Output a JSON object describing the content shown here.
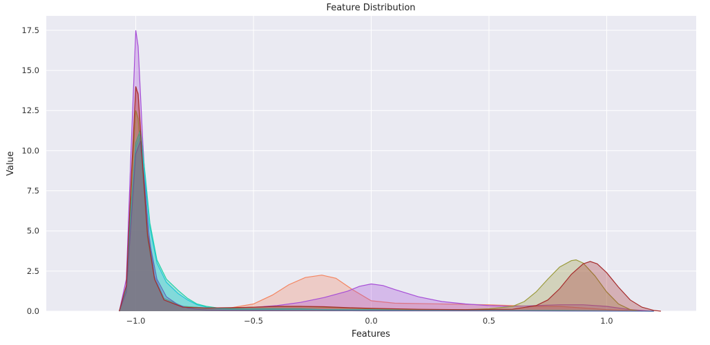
{
  "chart_data": {
    "type": "area",
    "title": "Feature Distribution",
    "xlabel": "Features",
    "ylabel": "Value",
    "xlim": [
      -1.38,
      1.38
    ],
    "ylim": [
      0,
      18.4
    ],
    "x_ticks": [
      -1.0,
      -0.5,
      0.0,
      0.5,
      1.0
    ],
    "x_tick_labels": [
      "−1.0",
      "−0.5",
      "0.0",
      "0.5",
      "1.0"
    ],
    "y_ticks": [
      0.0,
      2.5,
      5.0,
      7.5,
      10.0,
      12.5,
      15.0,
      17.5
    ],
    "y_tick_labels": [
      "0.0",
      "2.5",
      "5.0",
      "7.5",
      "10.0",
      "12.5",
      "15.0",
      "17.5"
    ],
    "grid": true,
    "background": "#eaeaf2",
    "series": [
      {
        "color": "#f4845f",
        "x": [
          -1.07,
          -1.04,
          -1.02,
          -1.0,
          -0.99,
          -0.97,
          -0.95,
          -0.92,
          -0.88,
          -0.8,
          -0.7,
          -0.6,
          -0.5,
          -0.42,
          -0.35,
          -0.28,
          -0.21,
          -0.15,
          -0.08,
          0.0,
          0.1,
          0.3,
          0.5,
          0.6,
          0.7,
          0.8,
          0.9,
          1.0,
          1.1,
          1.2
        ],
        "values": [
          0,
          1.5,
          7.5,
          13.8,
          13.6,
          9.5,
          5.0,
          2.0,
          0.8,
          0.3,
          0.15,
          0.2,
          0.45,
          1.0,
          1.65,
          2.1,
          2.25,
          2.05,
          1.35,
          0.65,
          0.5,
          0.45,
          0.4,
          0.35,
          0.3,
          0.3,
          0.2,
          0.1,
          0.05,
          0
        ]
      },
      {
        "color": "#a64dd6",
        "x": [
          -1.07,
          -1.04,
          -1.02,
          -1.0,
          -0.99,
          -0.97,
          -0.95,
          -0.92,
          -0.88,
          -0.8,
          -0.7,
          -0.6,
          -0.5,
          -0.4,
          -0.3,
          -0.2,
          -0.1,
          -0.05,
          0.0,
          0.05,
          0.1,
          0.2,
          0.3,
          0.4,
          0.5,
          0.6,
          0.7,
          0.8,
          0.9,
          1.0,
          1.1,
          1.2
        ],
        "values": [
          0,
          2.0,
          10.0,
          17.5,
          16.5,
          10.5,
          5.5,
          2.2,
          0.8,
          0.3,
          0.2,
          0.2,
          0.25,
          0.35,
          0.55,
          0.85,
          1.25,
          1.55,
          1.7,
          1.6,
          1.35,
          0.9,
          0.6,
          0.45,
          0.35,
          0.3,
          0.35,
          0.4,
          0.4,
          0.3,
          0.1,
          0
        ]
      },
      {
        "color": "#9a9a3a",
        "x": [
          -1.07,
          -1.04,
          -1.02,
          -1.0,
          -0.99,
          -0.97,
          -0.95,
          -0.92,
          -0.88,
          -0.8,
          -0.7,
          -0.6,
          -0.5,
          -0.4,
          -0.3,
          -0.2,
          -0.1,
          0.0,
          0.2,
          0.4,
          0.5,
          0.6,
          0.65,
          0.7,
          0.75,
          0.8,
          0.85,
          0.87,
          0.9,
          0.95,
          1.0,
          1.05,
          1.1,
          1.15
        ],
        "values": [
          0,
          1.5,
          7.5,
          12.5,
          12.0,
          8.5,
          4.5,
          2.0,
          0.8,
          0.3,
          0.2,
          0.2,
          0.25,
          0.3,
          0.3,
          0.25,
          0.2,
          0.15,
          0.1,
          0.1,
          0.15,
          0.3,
          0.6,
          1.2,
          2.0,
          2.75,
          3.15,
          3.2,
          3.0,
          2.2,
          1.2,
          0.45,
          0.1,
          0
        ]
      },
      {
        "color": "#1fd1a4",
        "x": [
          -1.07,
          -1.04,
          -1.02,
          -1.0,
          -0.98,
          -0.96,
          -0.94,
          -0.91,
          -0.87,
          -0.82,
          -0.78,
          -0.74,
          -0.7,
          -0.65,
          -0.6,
          -0.5,
          -0.4,
          -0.3,
          -0.2,
          -0.1,
          0.0,
          0.2,
          0.4,
          0.6,
          0.8,
          1.0,
          1.2
        ],
        "values": [
          0,
          1.5,
          6.5,
          10.5,
          11.3,
          8.5,
          5.5,
          3.2,
          2.0,
          1.3,
          0.8,
          0.45,
          0.3,
          0.2,
          0.15,
          0.15,
          0.15,
          0.15,
          0.1,
          0.1,
          0.1,
          0.05,
          0.05,
          0.05,
          0.05,
          0.02,
          0
        ]
      },
      {
        "color": "#20c8d8",
        "x": [
          -1.07,
          -1.04,
          -1.02,
          -1.0,
          -0.98,
          -0.96,
          -0.94,
          -0.91,
          -0.87,
          -0.82,
          -0.78,
          -0.74,
          -0.7,
          -0.65,
          -0.6,
          -0.5,
          -0.4,
          -0.3,
          -0.2,
          -0.1,
          0.0,
          0.2,
          0.4,
          0.6,
          0.8,
          1.0,
          1.2
        ],
        "values": [
          0,
          1.3,
          6.0,
          10.2,
          11.0,
          8.2,
          5.2,
          3.0,
          1.8,
          1.1,
          0.7,
          0.4,
          0.25,
          0.15,
          0.12,
          0.12,
          0.12,
          0.12,
          0.1,
          0.08,
          0.08,
          0.05,
          0.05,
          0.04,
          0.03,
          0.02,
          0
        ]
      },
      {
        "color": "#5c6ab8",
        "x": [
          -1.07,
          -1.04,
          -1.02,
          -1.0,
          -0.98,
          -0.96,
          -0.94,
          -0.91,
          -0.87,
          -0.82,
          -0.78,
          -0.74,
          -0.7,
          -0.6,
          -0.5,
          -0.3,
          0.0,
          0.4,
          0.8,
          1.2
        ],
        "values": [
          0,
          1.2,
          5.5,
          9.8,
          10.6,
          7.5,
          4.2,
          2.0,
          0.9,
          0.4,
          0.2,
          0.12,
          0.08,
          0.05,
          0.04,
          0.03,
          0.02,
          0.02,
          0.01,
          0
        ]
      },
      {
        "color": "#a52a2a",
        "x": [
          -1.07,
          -1.04,
          -1.02,
          -1.0,
          -0.99,
          -0.97,
          -0.95,
          -0.92,
          -0.88,
          -0.8,
          -0.7,
          -0.6,
          -0.5,
          -0.4,
          -0.3,
          -0.2,
          -0.1,
          0.0,
          0.2,
          0.4,
          0.6,
          0.7,
          0.75,
          0.8,
          0.85,
          0.9,
          0.93,
          0.96,
          1.0,
          1.05,
          1.1,
          1.15,
          1.2,
          1.23
        ],
        "values": [
          0,
          1.6,
          8.0,
          14.0,
          13.5,
          9.0,
          4.8,
          2.0,
          0.7,
          0.25,
          0.2,
          0.22,
          0.25,
          0.3,
          0.3,
          0.28,
          0.22,
          0.18,
          0.12,
          0.1,
          0.12,
          0.35,
          0.7,
          1.4,
          2.3,
          2.95,
          3.1,
          2.95,
          2.4,
          1.5,
          0.7,
          0.25,
          0.05,
          0
        ]
      }
    ]
  }
}
